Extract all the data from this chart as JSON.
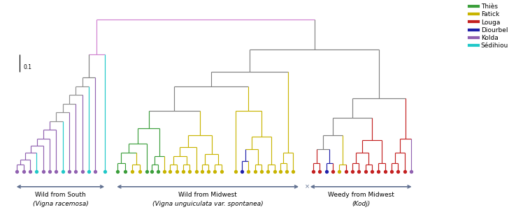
{
  "colors": {
    "Thies": "#3a9e3a",
    "Fatick": "#c8b400",
    "Louga": "#c42020",
    "Diourbel": "#2020aa",
    "Kolda": "#9060b0",
    "Sedihiou": "#20c8c8"
  },
  "top_connector_color": "#d080d0",
  "gray": "#808080",
  "gray2": "#909090",
  "pink_light": "#c090c0",
  "legend_labels": [
    "Thiès",
    "Fatick",
    "Louga",
    "Diourbel",
    "Kolda",
    "Sédihiou"
  ],
  "legend_colors": [
    "#3a9e3a",
    "#c8b400",
    "#c42020",
    "#2020aa",
    "#9060b0",
    "#20c8c8"
  ],
  "background": "#ffffff",
  "scale_label": "0.1"
}
